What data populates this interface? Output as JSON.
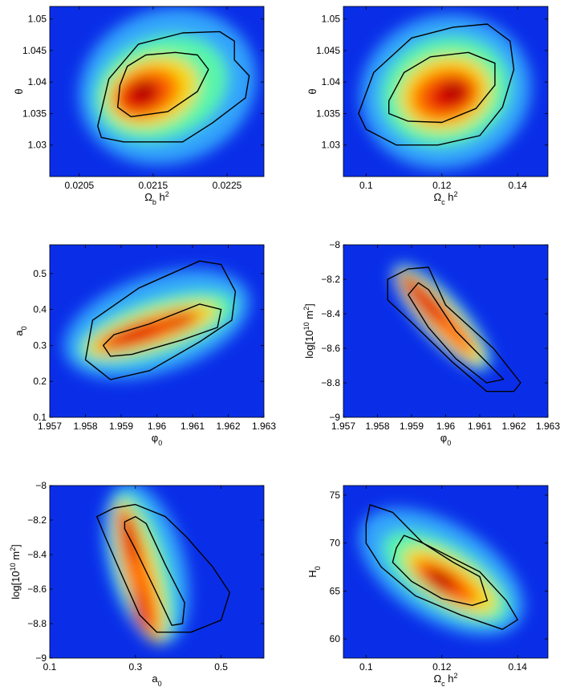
{
  "chart_data": [
    {
      "type": "heatmap",
      "xlabel": "Ω_b h^2",
      "ylabel": "θ",
      "xlim": [
        0.0201,
        0.023
      ],
      "ylim": [
        1.025,
        1.052
      ],
      "xticks": [
        0.0205,
        0.0215,
        0.0225
      ],
      "xtick_labels": [
        "0.0205",
        "0.0215",
        "0.0225"
      ],
      "yticks": [
        1.03,
        1.035,
        1.04,
        1.045,
        1.05
      ],
      "ytick_labels": [
        "1.03",
        "1.035",
        "1.04",
        "1.045",
        "1.05"
      ],
      "peak": [
        0.02152,
        1.0392
      ],
      "contour_inner": [
        [
          0.02105,
          1.0395
        ],
        [
          0.02115,
          1.0425
        ],
        [
          0.0214,
          1.0443
        ],
        [
          0.0218,
          1.0447
        ],
        [
          0.0221,
          1.0443
        ],
        [
          0.02225,
          1.042
        ],
        [
          0.0221,
          1.0385
        ],
        [
          0.0217,
          1.0353
        ],
        [
          0.0212,
          1.0345
        ],
        [
          0.02102,
          1.036
        ]
      ],
      "contour_outer": [
        [
          0.02075,
          1.033
        ],
        [
          0.0209,
          1.0405
        ],
        [
          0.0213,
          1.046
        ],
        [
          0.0219,
          1.0478
        ],
        [
          0.0224,
          1.048
        ],
        [
          0.0226,
          1.0465
        ],
        [
          0.0226,
          1.0435
        ],
        [
          0.0228,
          1.041
        ],
        [
          0.02275,
          1.0375
        ],
        [
          0.0223,
          1.0335
        ],
        [
          0.0219,
          1.0305
        ],
        [
          0.0211,
          1.0305
        ],
        [
          0.0208,
          1.0312
        ]
      ]
    },
    {
      "type": "heatmap",
      "xlabel": "Ω_c h^2",
      "ylabel": "θ",
      "xlim": [
        0.094,
        0.148
      ],
      "ylim": [
        1.025,
        1.052
      ],
      "xticks": [
        0.1,
        0.12,
        0.14
      ],
      "xtick_labels": [
        "0.1",
        "0.12",
        "0.14"
      ],
      "yticks": [
        1.03,
        1.035,
        1.04,
        1.045,
        1.05
      ],
      "ytick_labels": [
        "1.03",
        "1.035",
        "1.04",
        "1.045",
        "1.05"
      ],
      "peak": [
        0.12,
        1.0388
      ],
      "contour_inner": [
        [
          0.106,
          1.037
        ],
        [
          0.11,
          1.0415
        ],
        [
          0.117,
          1.044
        ],
        [
          0.127,
          1.0447
        ],
        [
          0.134,
          1.043
        ],
        [
          0.134,
          1.0395
        ],
        [
          0.129,
          1.0358
        ],
        [
          0.12,
          1.0336
        ],
        [
          0.111,
          1.0338
        ],
        [
          0.106,
          1.035
        ]
      ],
      "contour_outer": [
        [
          0.098,
          1.035
        ],
        [
          0.102,
          1.0415
        ],
        [
          0.112,
          1.047
        ],
        [
          0.123,
          1.0487
        ],
        [
          0.132,
          1.0492
        ],
        [
          0.138,
          1.0465
        ],
        [
          0.139,
          1.042
        ],
        [
          0.136,
          1.036
        ],
        [
          0.13,
          1.0315
        ],
        [
          0.119,
          1.03
        ],
        [
          0.108,
          1.03
        ],
        [
          0.1,
          1.0325
        ]
      ]
    },
    {
      "type": "heatmap",
      "xlabel": "φ_0",
      "ylabel": "a_0",
      "xlim": [
        1.957,
        1.963
      ],
      "ylim": [
        0.1,
        0.58
      ],
      "xticks": [
        1.957,
        1.958,
        1.959,
        1.96,
        1.961,
        1.962,
        1.963
      ],
      "xtick_labels": [
        "1.957",
        "1.958",
        "1.959",
        "1.96",
        "1.961",
        "1.962",
        "1.963"
      ],
      "yticks": [
        0.1,
        0.2,
        0.3,
        0.4,
        0.5
      ],
      "ytick_labels": [
        "0.1",
        "0.2",
        "0.3",
        "0.4",
        "0.5"
      ],
      "peak": [
        1.9593,
        0.305
      ],
      "contour_inner": [
        [
          1.9585,
          0.3
        ],
        [
          1.9588,
          0.33
        ],
        [
          1.9598,
          0.36
        ],
        [
          1.9612,
          0.415
        ],
        [
          1.9618,
          0.4
        ],
        [
          1.9617,
          0.35
        ],
        [
          1.9607,
          0.315
        ],
        [
          1.9593,
          0.275
        ],
        [
          1.9587,
          0.27
        ]
      ],
      "contour_outer": [
        [
          1.958,
          0.26
        ],
        [
          1.9582,
          0.37
        ],
        [
          1.9595,
          0.46
        ],
        [
          1.9612,
          0.535
        ],
        [
          1.9618,
          0.525
        ],
        [
          1.9622,
          0.45
        ],
        [
          1.9621,
          0.37
        ],
        [
          1.9612,
          0.31
        ],
        [
          1.9598,
          0.23
        ],
        [
          1.9587,
          0.205
        ]
      ]
    },
    {
      "type": "heatmap",
      "xlabel": "φ_0",
      "ylabel": "log[10^10 m^2]",
      "xlim": [
        1.957,
        1.963
      ],
      "ylim": [
        -9.0,
        -8.0
      ],
      "xticks": [
        1.957,
        1.958,
        1.959,
        1.96,
        1.961,
        1.962,
        1.963
      ],
      "xtick_labels": [
        "1.957",
        "1.958",
        "1.959",
        "1.96",
        "1.961",
        "1.962",
        "1.963"
      ],
      "yticks": [
        -9.0,
        -8.8,
        -8.6,
        -8.4,
        -8.2,
        -8.0
      ],
      "ytick_labels": [
        "−9",
        "−8.8",
        "−8.6",
        "−8.4",
        "−8.2",
        "−8"
      ],
      "peak": [
        1.9594,
        -8.33
      ],
      "contour_inner": [
        [
          1.9589,
          -8.29
        ],
        [
          1.9592,
          -8.22
        ],
        [
          1.9595,
          -8.26
        ],
        [
          1.9603,
          -8.5
        ],
        [
          1.9617,
          -8.78
        ],
        [
          1.9612,
          -8.8
        ],
        [
          1.9603,
          -8.66
        ],
        [
          1.9595,
          -8.48
        ]
      ],
      "contour_outer": [
        [
          1.9583,
          -8.2
        ],
        [
          1.9589,
          -8.14
        ],
        [
          1.9595,
          -8.13
        ],
        [
          1.96,
          -8.35
        ],
        [
          1.9614,
          -8.6
        ],
        [
          1.9622,
          -8.8
        ],
        [
          1.962,
          -8.85
        ],
        [
          1.9612,
          -8.85
        ],
        [
          1.9602,
          -8.68
        ],
        [
          1.959,
          -8.45
        ],
        [
          1.9583,
          -8.32
        ]
      ]
    },
    {
      "type": "heatmap",
      "xlabel": "a_0",
      "ylabel": "log[10^10 m^2]",
      "xlim": [
        0.1,
        0.6
      ],
      "ylim": [
        -9.0,
        -8.0
      ],
      "xticks": [
        0.1,
        0.3,
        0.5
      ],
      "xtick_labels": [
        "0.1",
        "0.3",
        "0.5"
      ],
      "yticks": [
        -9.0,
        -8.8,
        -8.6,
        -8.4,
        -8.2,
        -8.0
      ],
      "ytick_labels": [
        "−9",
        "−8.8",
        "−8.6",
        "−8.4",
        "−8.2",
        "−8"
      ],
      "peak": [
        0.31,
        -8.38
      ],
      "contour_inner": [
        [
          0.275,
          -8.21
        ],
        [
          0.3,
          -8.18
        ],
        [
          0.325,
          -8.22
        ],
        [
          0.37,
          -8.46
        ],
        [
          0.415,
          -8.68
        ],
        [
          0.41,
          -8.8
        ],
        [
          0.385,
          -8.81
        ],
        [
          0.345,
          -8.6
        ],
        [
          0.3,
          -8.37
        ],
        [
          0.275,
          -8.25
        ]
      ],
      "contour_outer": [
        [
          0.21,
          -8.18
        ],
        [
          0.25,
          -8.13
        ],
        [
          0.3,
          -8.11
        ],
        [
          0.37,
          -8.18
        ],
        [
          0.42,
          -8.3
        ],
        [
          0.48,
          -8.47
        ],
        [
          0.52,
          -8.62
        ],
        [
          0.5,
          -8.78
        ],
        [
          0.43,
          -8.85
        ],
        [
          0.35,
          -8.85
        ],
        [
          0.31,
          -8.75
        ],
        [
          0.265,
          -8.5
        ],
        [
          0.23,
          -8.3
        ]
      ]
    },
    {
      "type": "heatmap",
      "xlabel": "Ω_c h^2",
      "ylabel": "H_0",
      "xlim": [
        0.094,
        0.148
      ],
      "ylim": [
        58.0,
        76.0
      ],
      "xticks": [
        0.1,
        0.12,
        0.14
      ],
      "xtick_labels": [
        "0.1",
        "0.12",
        "0.14"
      ],
      "yticks": [
        60,
        65,
        70,
        75
      ],
      "ytick_labels": [
        "60",
        "65",
        "70",
        "75"
      ],
      "peak": [
        0.119,
        66.2
      ],
      "contour_inner": [
        [
          0.108,
          69.5
        ],
        [
          0.11,
          70.8
        ],
        [
          0.115,
          70.0
        ],
        [
          0.123,
          68.0
        ],
        [
          0.13,
          66.5
        ],
        [
          0.132,
          64.0
        ],
        [
          0.128,
          63.5
        ],
        [
          0.12,
          64.2
        ],
        [
          0.112,
          66.0
        ],
        [
          0.107,
          68.0
        ]
      ],
      "contour_outer": [
        [
          0.1,
          72.0
        ],
        [
          0.101,
          74.0
        ],
        [
          0.107,
          73.2
        ],
        [
          0.115,
          70.0
        ],
        [
          0.13,
          67.0
        ],
        [
          0.137,
          64.0
        ],
        [
          0.14,
          62.0
        ],
        [
          0.136,
          61.0
        ],
        [
          0.125,
          62.5
        ],
        [
          0.113,
          64.5
        ],
        [
          0.104,
          67.5
        ],
        [
          0.1,
          70.0
        ]
      ]
    }
  ]
}
